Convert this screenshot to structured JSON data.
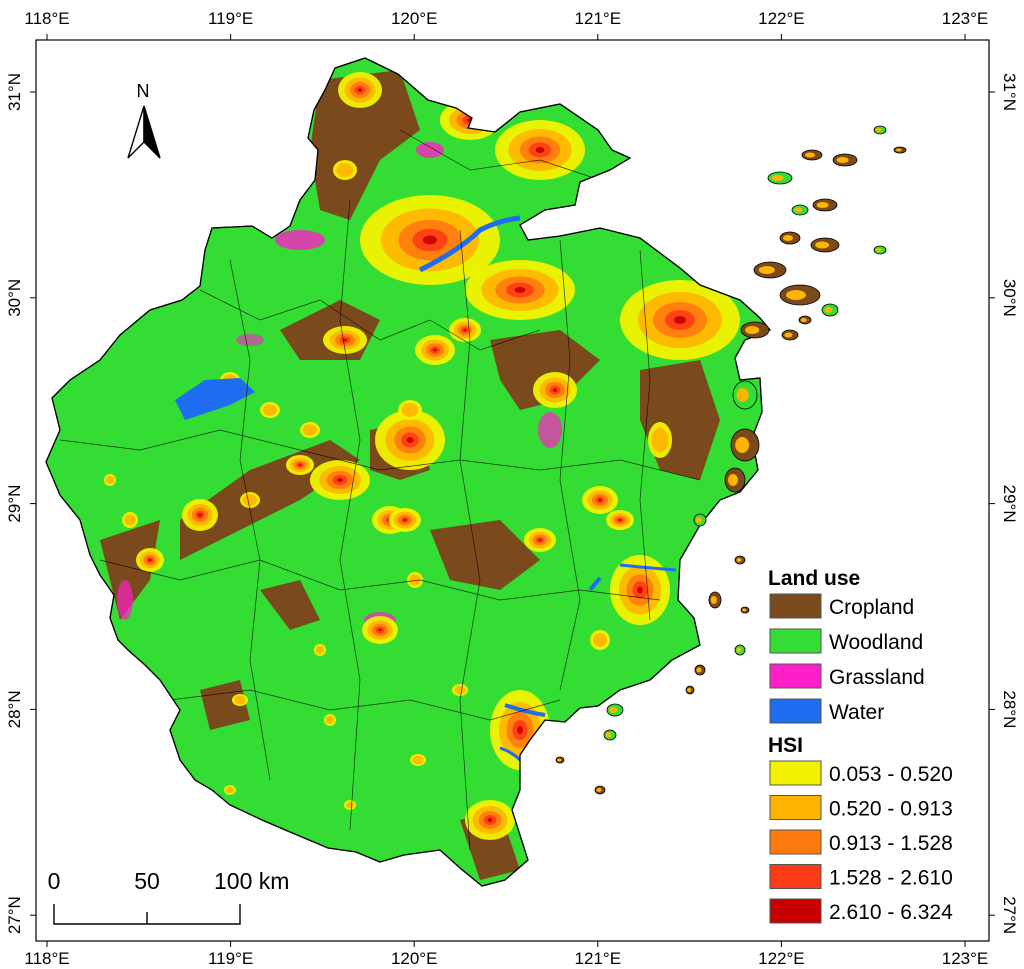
{
  "map": {
    "frame_lon_range": [
      118.0,
      123.0
    ],
    "frame_lat_range": [
      27.0,
      31.0
    ],
    "lon_ticks": [
      {
        "value": 118,
        "label": "118°E"
      },
      {
        "value": 119,
        "label": "119°E"
      },
      {
        "value": 120,
        "label": "120°E"
      },
      {
        "value": 121,
        "label": "121°E"
      },
      {
        "value": 122,
        "label": "122°E"
      },
      {
        "value": 123,
        "label": "123°E"
      }
    ],
    "lat_ticks": [
      {
        "value": 31,
        "label": "31°N"
      },
      {
        "value": 30,
        "label": "30°N"
      },
      {
        "value": 29,
        "label": "29°N"
      },
      {
        "value": 28,
        "label": "28°N"
      },
      {
        "value": 27,
        "label": "27°N"
      }
    ],
    "north_arrow_label": "N",
    "scale_bar": {
      "labels": [
        "0",
        "50",
        "100 km"
      ],
      "distances_km": [
        0,
        50,
        100
      ]
    }
  },
  "legend": {
    "land_use_title": "Land use",
    "land_use": [
      {
        "label": "Cropland",
        "color": "#7a4a1c"
      },
      {
        "label": "Woodland",
        "color": "#33dd33"
      },
      {
        "label": "Grassland",
        "color": "#ff1fc8"
      },
      {
        "label": "Water",
        "color": "#1e6cf0"
      }
    ],
    "hsi_title": "HSI",
    "hsi": [
      {
        "label": "0.053 - 0.520",
        "color": "#f2f200"
      },
      {
        "label": "0.520 - 0.913",
        "color": "#ffb400"
      },
      {
        "label": "0.913 - 1.528",
        "color": "#ff7a0e"
      },
      {
        "label": "1.528 - 2.610",
        "color": "#ff3a16"
      },
      {
        "label": "2.610 - 6.324",
        "color": "#c80000"
      }
    ]
  }
}
